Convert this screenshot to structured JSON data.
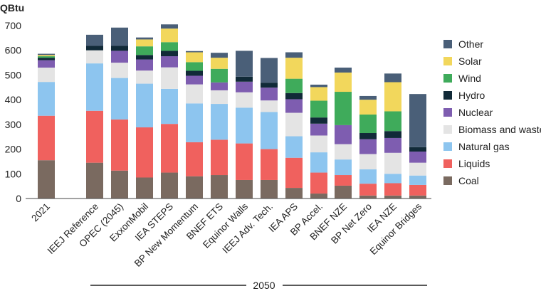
{
  "chart_data": {
    "type": "stacked-bar",
    "ylabel": "QBtu",
    "ylim": [
      0,
      700
    ],
    "yticks": [
      0,
      100,
      200,
      300,
      400,
      500,
      600,
      700
    ],
    "grid": false,
    "legend_position": "right",
    "group_label": "2050",
    "categories": [
      "2021",
      "IEEJ Reference",
      "OPEC (2045)",
      "ExxonMobil",
      "IEA STEPS",
      "BP New Momentum",
      "BNEF ETS",
      "Equinor Walls",
      "IEEJ Adv. Tech.",
      "IEA APS",
      "BP Accel.",
      "BNEF NZE",
      "BP Net Zero",
      "IEA NZE",
      "Equinor Bridges"
    ],
    "series": [
      {
        "name": "Coal",
        "color": "#7a6a60",
        "values": [
          155,
          145,
          113,
          85,
          105,
          90,
          95,
          75,
          75,
          43,
          20,
          52,
          12,
          12,
          12
        ]
      },
      {
        "name": "Liquids",
        "color": "#f0615e",
        "values": [
          180,
          210,
          207,
          203,
          197,
          138,
          143,
          148,
          125,
          122,
          85,
          43,
          48,
          50,
          43
        ]
      },
      {
        "name": "Natural gas",
        "color": "#8dc5ef",
        "values": [
          137,
          192,
          168,
          177,
          142,
          157,
          145,
          145,
          150,
          87,
          82,
          63,
          58,
          38,
          38
        ]
      },
      {
        "name": "Biomass and waste",
        "color": "#e4e4e4",
        "values": [
          58,
          53,
          62,
          53,
          87,
          77,
          55,
          62,
          47,
          95,
          68,
          62,
          62,
          85,
          52
        ]
      },
      {
        "name": "Nuclear",
        "color": "#7e5db0",
        "values": [
          30,
          0,
          48,
          45,
          45,
          35,
          32,
          43,
          52,
          55,
          48,
          77,
          60,
          60,
          45
        ]
      },
      {
        "name": "Hydro",
        "color": "#112a38",
        "values": [
          10,
          18,
          20,
          18,
          22,
          20,
          0,
          20,
          20,
          25,
          25,
          0,
          25,
          28,
          18
        ]
      },
      {
        "name": "Wind",
        "color": "#3fab5b",
        "values": [
          6,
          0,
          0,
          35,
          35,
          35,
          55,
          0,
          0,
          58,
          68,
          135,
          75,
          80,
          0
        ]
      },
      {
        "name": "Solar",
        "color": "#f2d75c",
        "values": [
          5,
          0,
          0,
          28,
          55,
          40,
          45,
          0,
          0,
          85,
          55,
          78,
          60,
          118,
          0
        ]
      },
      {
        "name": "Other",
        "color": "#4a5f78",
        "values": [
          5,
          45,
          74,
          8,
          17,
          5,
          20,
          105,
          100,
          22,
          10,
          20,
          15,
          35,
          215
        ]
      }
    ]
  }
}
